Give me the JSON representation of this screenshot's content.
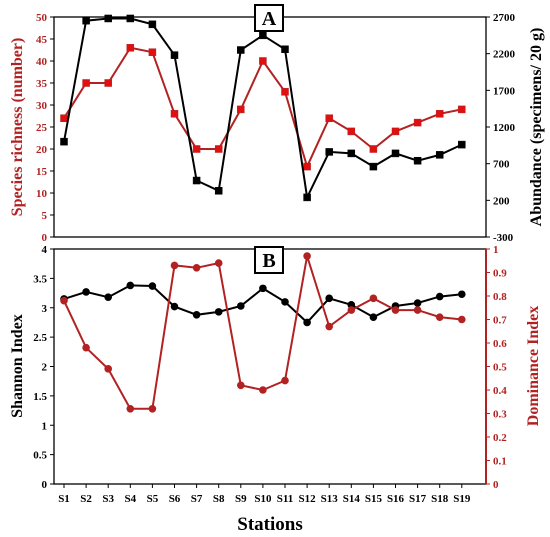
{
  "chart_data": [
    {
      "panel_label": "A",
      "type": "line",
      "categories": [
        "S1",
        "S2",
        "S3",
        "S4",
        "S5",
        "S6",
        "S7",
        "S8",
        "S9",
        "S10",
        "S11",
        "S12",
        "S13",
        "S14",
        "S15",
        "S16",
        "S17",
        "S18",
        "S19"
      ],
      "left_axis": {
        "label": "Species richness (number)",
        "ylim": [
          0,
          50
        ],
        "ticks": [
          0,
          5,
          10,
          15,
          20,
          25,
          30,
          35,
          40,
          45,
          50
        ]
      },
      "right_axis": {
        "label": "Abundance (specimens/ 20 g)",
        "ylim": [
          -300,
          2700
        ],
        "ticks": [
          -300,
          200,
          700,
          1200,
          1700,
          2200,
          2700
        ]
      },
      "series": [
        {
          "axis": "left",
          "color": "#b22222",
          "marker_fill": "#e01010",
          "values": [
            27,
            35,
            35,
            43,
            42,
            28,
            20,
            20,
            29,
            40,
            33,
            16,
            27,
            24,
            20,
            24,
            26,
            28,
            29
          ]
        },
        {
          "axis": "right",
          "color": "#000000",
          "marker_fill": "#000000",
          "values": [
            1000,
            2650,
            2680,
            2680,
            2600,
            2180,
            470,
            330,
            2250,
            2450,
            2260,
            240,
            860,
            840,
            660,
            840,
            740,
            820,
            960
          ]
        }
      ]
    },
    {
      "panel_label": "B",
      "type": "line",
      "categories": [
        "S1",
        "S2",
        "S3",
        "S4",
        "S5",
        "S6",
        "S7",
        "S8",
        "S9",
        "S10",
        "S11",
        "S12",
        "S13",
        "S14",
        "S15",
        "S16",
        "S17",
        "S18",
        "S19"
      ],
      "left_axis": {
        "label": "Shannon Index",
        "ylim": [
          0,
          4
        ],
        "ticks": [
          0,
          0.5,
          1,
          1.5,
          2,
          2.5,
          3,
          3.5,
          4
        ],
        "tick_labels": [
          "0",
          "0.5",
          "1",
          "1.5",
          "2",
          "2.5",
          "3",
          "3.5",
          "4"
        ]
      },
      "right_axis": {
        "label": "Dominance Index",
        "ylim": [
          0,
          1
        ],
        "ticks": [
          0,
          0.1,
          0.2,
          0.3,
          0.4,
          0.5,
          0.6,
          0.7,
          0.8,
          0.9,
          1
        ],
        "tick_labels": [
          "0",
          "0.1",
          "0.2",
          "0.3",
          "0.4",
          "0.5",
          "0.6",
          "0.7",
          "0.8",
          "0.9",
          "1"
        ]
      },
      "series": [
        {
          "axis": "left",
          "color": "#000000",
          "marker_fill": "#000000",
          "values": [
            3.15,
            3.27,
            3.18,
            3.38,
            3.37,
            3.02,
            2.88,
            2.93,
            3.03,
            3.33,
            3.1,
            2.75,
            3.16,
            3.05,
            2.84,
            3.03,
            3.08,
            3.19,
            3.23
          ]
        },
        {
          "axis": "right",
          "color": "#b22222",
          "marker_fill": "#b22222",
          "values": [
            0.78,
            0.58,
            0.49,
            0.32,
            0.32,
            0.93,
            0.92,
            0.94,
            0.42,
            0.4,
            0.44,
            0.97,
            0.67,
            0.74,
            0.79,
            0.74,
            0.74,
            0.71,
            0.7
          ]
        }
      ]
    }
  ],
  "xlabel": "Stations"
}
